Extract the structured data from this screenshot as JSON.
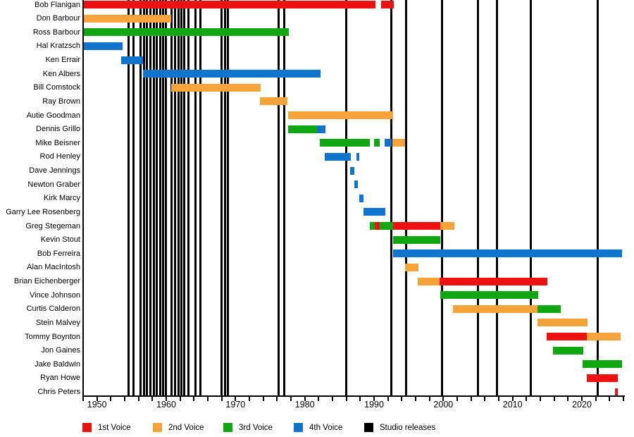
{
  "chart_data": {
    "type": "bar",
    "variant": "band-member-timeline-gantt",
    "title": "",
    "x_axis": {
      "min_year": 1948,
      "max_year": 2026,
      "tick_step_years": 2,
      "decade_labels": [
        "1950",
        "1960",
        "1970",
        "1980",
        "1990",
        "2000",
        "2010",
        "2020"
      ],
      "grid": "off"
    },
    "voice_colors": {
      "1st": "#ee1111",
      "2nd": "#f6a33a",
      "3rd": "#10a710",
      "4th": "#1074cc",
      "studio": "#000000"
    },
    "members": [
      {
        "name": "Bob Flanigan",
        "segments": [
          {
            "voice": "1st",
            "start": 1948.0,
            "end": 1990.2
          },
          {
            "voice": "1st",
            "start": 1991.0,
            "end": 1992.8
          }
        ]
      },
      {
        "name": "Don Barbour",
        "segments": [
          {
            "voice": "2nd",
            "start": 1948.0,
            "end": 1960.7
          }
        ]
      },
      {
        "name": "Ross Barbour",
        "segments": [
          {
            "voice": "3rd",
            "start": 1948.0,
            "end": 1977.7
          }
        ]
      },
      {
        "name": "Hal Kratzsch",
        "segments": [
          {
            "voice": "4th",
            "start": 1948.0,
            "end": 1953.7
          }
        ]
      },
      {
        "name": "Ken Errair",
        "segments": [
          {
            "voice": "4th",
            "start": 1953.5,
            "end": 1956.6
          }
        ]
      },
      {
        "name": "Ken Albers",
        "segments": [
          {
            "voice": "4th",
            "start": 1956.6,
            "end": 1982.3
          }
        ]
      },
      {
        "name": "Bill Comstock",
        "segments": [
          {
            "voice": "2nd",
            "start": 1960.7,
            "end": 1973.6
          }
        ]
      },
      {
        "name": "Ray Brown",
        "segments": [
          {
            "voice": "2nd",
            "start": 1973.5,
            "end": 1977.5
          }
        ]
      },
      {
        "name": "Autie Goodman",
        "segments": [
          {
            "voice": "2nd",
            "start": 1977.6,
            "end": 1992.7
          }
        ]
      },
      {
        "name": "Dennis Grillo",
        "segments": [
          {
            "voice": "3rd",
            "start": 1977.6,
            "end": 1981.8
          },
          {
            "voice": "4th",
            "start": 1981.8,
            "end": 1983.0
          }
        ]
      },
      {
        "name": "Mike Beisner",
        "segments": [
          {
            "voice": "3rd",
            "start": 1982.2,
            "end": 1989.4
          },
          {
            "voice": "3rd",
            "start": 1990.0,
            "end": 1990.8
          },
          {
            "voice": "4th",
            "start": 1991.5,
            "end": 1992.5
          },
          {
            "voice": "2nd",
            "start": 1992.6,
            "end": 1994.5
          }
        ]
      },
      {
        "name": "Rod Henley",
        "segments": [
          {
            "voice": "4th",
            "start": 1982.9,
            "end": 1986.6
          },
          {
            "voice": "4th",
            "start": 1987.5,
            "end": 1987.9
          }
        ]
      },
      {
        "name": "Dave Jennings",
        "segments": [
          {
            "voice": "4th",
            "start": 1986.5,
            "end": 1987.2
          }
        ]
      },
      {
        "name": "Newton Graber",
        "segments": [
          {
            "voice": "4th",
            "start": 1987.2,
            "end": 1987.7
          }
        ]
      },
      {
        "name": "Kirk Marcy",
        "segments": [
          {
            "voice": "4th",
            "start": 1987.9,
            "end": 1988.5
          }
        ]
      },
      {
        "name": "Garry Lee Rosenberg",
        "segments": [
          {
            "voice": "4th",
            "start": 1988.5,
            "end": 1991.6
          }
        ]
      },
      {
        "name": "Greg Stegeman",
        "segments": [
          {
            "voice": "3rd",
            "start": 1989.4,
            "end": 1990.1
          },
          {
            "voice": "1st",
            "start": 1990.1,
            "end": 1990.8
          },
          {
            "voice": "3rd",
            "start": 1990.8,
            "end": 1992.7
          },
          {
            "voice": "1st",
            "start": 1992.7,
            "end": 1999.6
          },
          {
            "voice": "2nd",
            "start": 1999.6,
            "end": 2001.6
          }
        ]
      },
      {
        "name": "Kevin Stout",
        "segments": [
          {
            "voice": "3rd",
            "start": 1992.7,
            "end": 1999.6
          }
        ]
      },
      {
        "name": "Bob Ferreira",
        "segments": [
          {
            "voice": "4th",
            "start": 1992.7,
            "end": 2025.8
          }
        ]
      },
      {
        "name": "Alan MacIntosh",
        "segments": [
          {
            "voice": "2nd",
            "start": 1994.5,
            "end": 1996.4
          }
        ]
      },
      {
        "name": "Brian Eichenberger",
        "segments": [
          {
            "voice": "2nd",
            "start": 1996.3,
            "end": 1999.5
          },
          {
            "voice": "1st",
            "start": 1999.5,
            "end": 2015.0
          }
        ]
      },
      {
        "name": "Vince Johnson",
        "segments": [
          {
            "voice": "3rd",
            "start": 1999.6,
            "end": 2013.7
          }
        ]
      },
      {
        "name": "Curtis Calderon",
        "segments": [
          {
            "voice": "2nd",
            "start": 2001.4,
            "end": 2013.6
          },
          {
            "voice": "3rd",
            "start": 2013.6,
            "end": 2016.9
          }
        ]
      },
      {
        "name": "Stein Malvey",
        "segments": [
          {
            "voice": "2nd",
            "start": 2013.6,
            "end": 2020.8
          }
        ]
      },
      {
        "name": "Tommy Boynton",
        "segments": [
          {
            "voice": "1st",
            "start": 2014.9,
            "end": 2020.7
          },
          {
            "voice": "2nd",
            "start": 2020.7,
            "end": 2025.6
          }
        ]
      },
      {
        "name": "Jon Gaines",
        "segments": [
          {
            "voice": "3rd",
            "start": 2015.8,
            "end": 2020.2
          }
        ]
      },
      {
        "name": "Jake Baldwin",
        "segments": [
          {
            "voice": "3rd",
            "start": 2020.1,
            "end": 2025.8
          }
        ]
      },
      {
        "name": "Ryan Howe",
        "segments": [
          {
            "voice": "1st",
            "start": 2020.7,
            "end": 2025.2
          }
        ]
      },
      {
        "name": "Chris Peters",
        "segments": [
          {
            "voice": "1st",
            "start": 2024.8,
            "end": 2025.2
          }
        ]
      }
    ],
    "studio_release_years": [
      1954.6,
      1955.3,
      1956.3,
      1956.8,
      1957.2,
      1957.7,
      1958.2,
      1958.6,
      1959.1,
      1959.5,
      1959.9,
      1960.8,
      1961.3,
      1961.8,
      1962.2,
      1962.6,
      1963.2,
      1964.2,
      1964.9,
      1968.0,
      1968.5,
      1968.9,
      1976.2,
      1977.0,
      1986.0,
      1992.5,
      1994.6,
      1999.8,
      2005.0,
      2007.7,
      2012.6,
      2022.3
    ]
  },
  "legend": {
    "items": [
      {
        "label": "1st Voice",
        "color_key": "1st"
      },
      {
        "label": "2nd Voice",
        "color_key": "2nd"
      },
      {
        "label": "3rd Voice",
        "color_key": "3rd"
      },
      {
        "label": "4th Voice",
        "color_key": "4th"
      },
      {
        "label": "Studio releases",
        "color_key": "studio"
      }
    ]
  }
}
